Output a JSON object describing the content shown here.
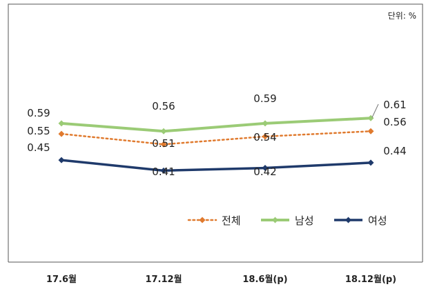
{
  "unit": "단위: %",
  "chart_data": {
    "type": "line",
    "categories": [
      "17.6월",
      "17.12월",
      "18.6월(p)",
      "18.12월(p)"
    ],
    "series": [
      {
        "name": "전체",
        "values": [
          0.55,
          0.51,
          0.54,
          0.56
        ],
        "color": "#E07A2E",
        "style": "dotted"
      },
      {
        "name": "남성",
        "values": [
          0.59,
          0.56,
          0.59,
          0.61
        ],
        "color": "#9BCB76",
        "style": "solid"
      },
      {
        "name": "여성",
        "values": [
          0.45,
          0.41,
          0.42,
          0.44
        ],
        "color": "#1F3A6B",
        "style": "solid"
      }
    ],
    "value_labels": {
      "전체": [
        "0.55",
        "0.51",
        "0.54",
        "0.56"
      ],
      "남성": [
        "0.59",
        "0.56",
        "0.59",
        "0.61"
      ],
      "여성": [
        "0.45",
        "0.41",
        "0.42",
        "0.44"
      ]
    },
    "legend_position": "bottom-right",
    "grid": false
  }
}
